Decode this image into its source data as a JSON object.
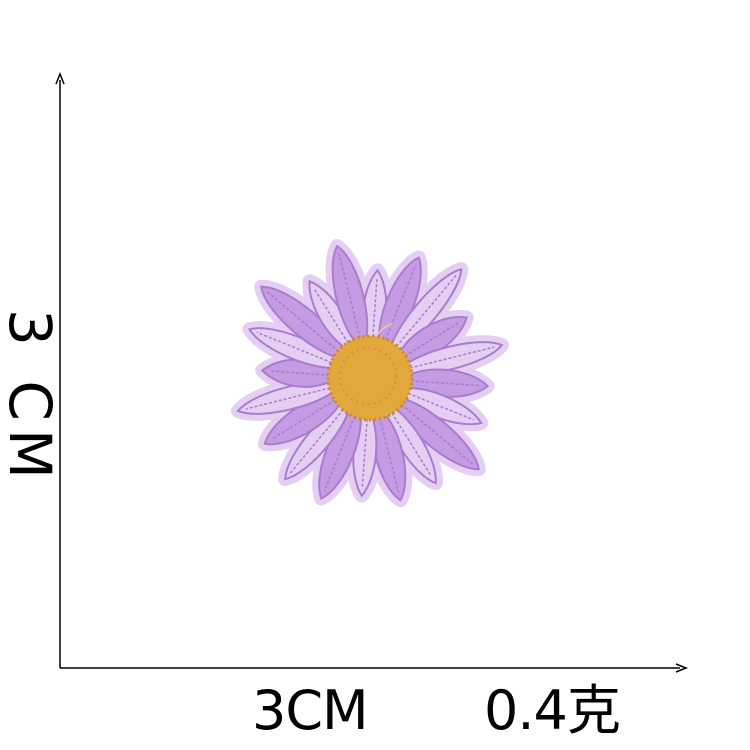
{
  "dimensions": {
    "height_label": "3 CM",
    "width_label": "3CM",
    "weight_label": "0.4克"
  },
  "product": {
    "subject": "daisy-embroidery-patch",
    "colors": {
      "petal": "#c59be4",
      "petal_shadow": "#a97ccd",
      "petal_light": "#e4cff3",
      "border": "#f1ecfb",
      "center": "#e2a83c",
      "center_dark": "#c98a24"
    }
  },
  "axes": {
    "color": "#000000"
  }
}
